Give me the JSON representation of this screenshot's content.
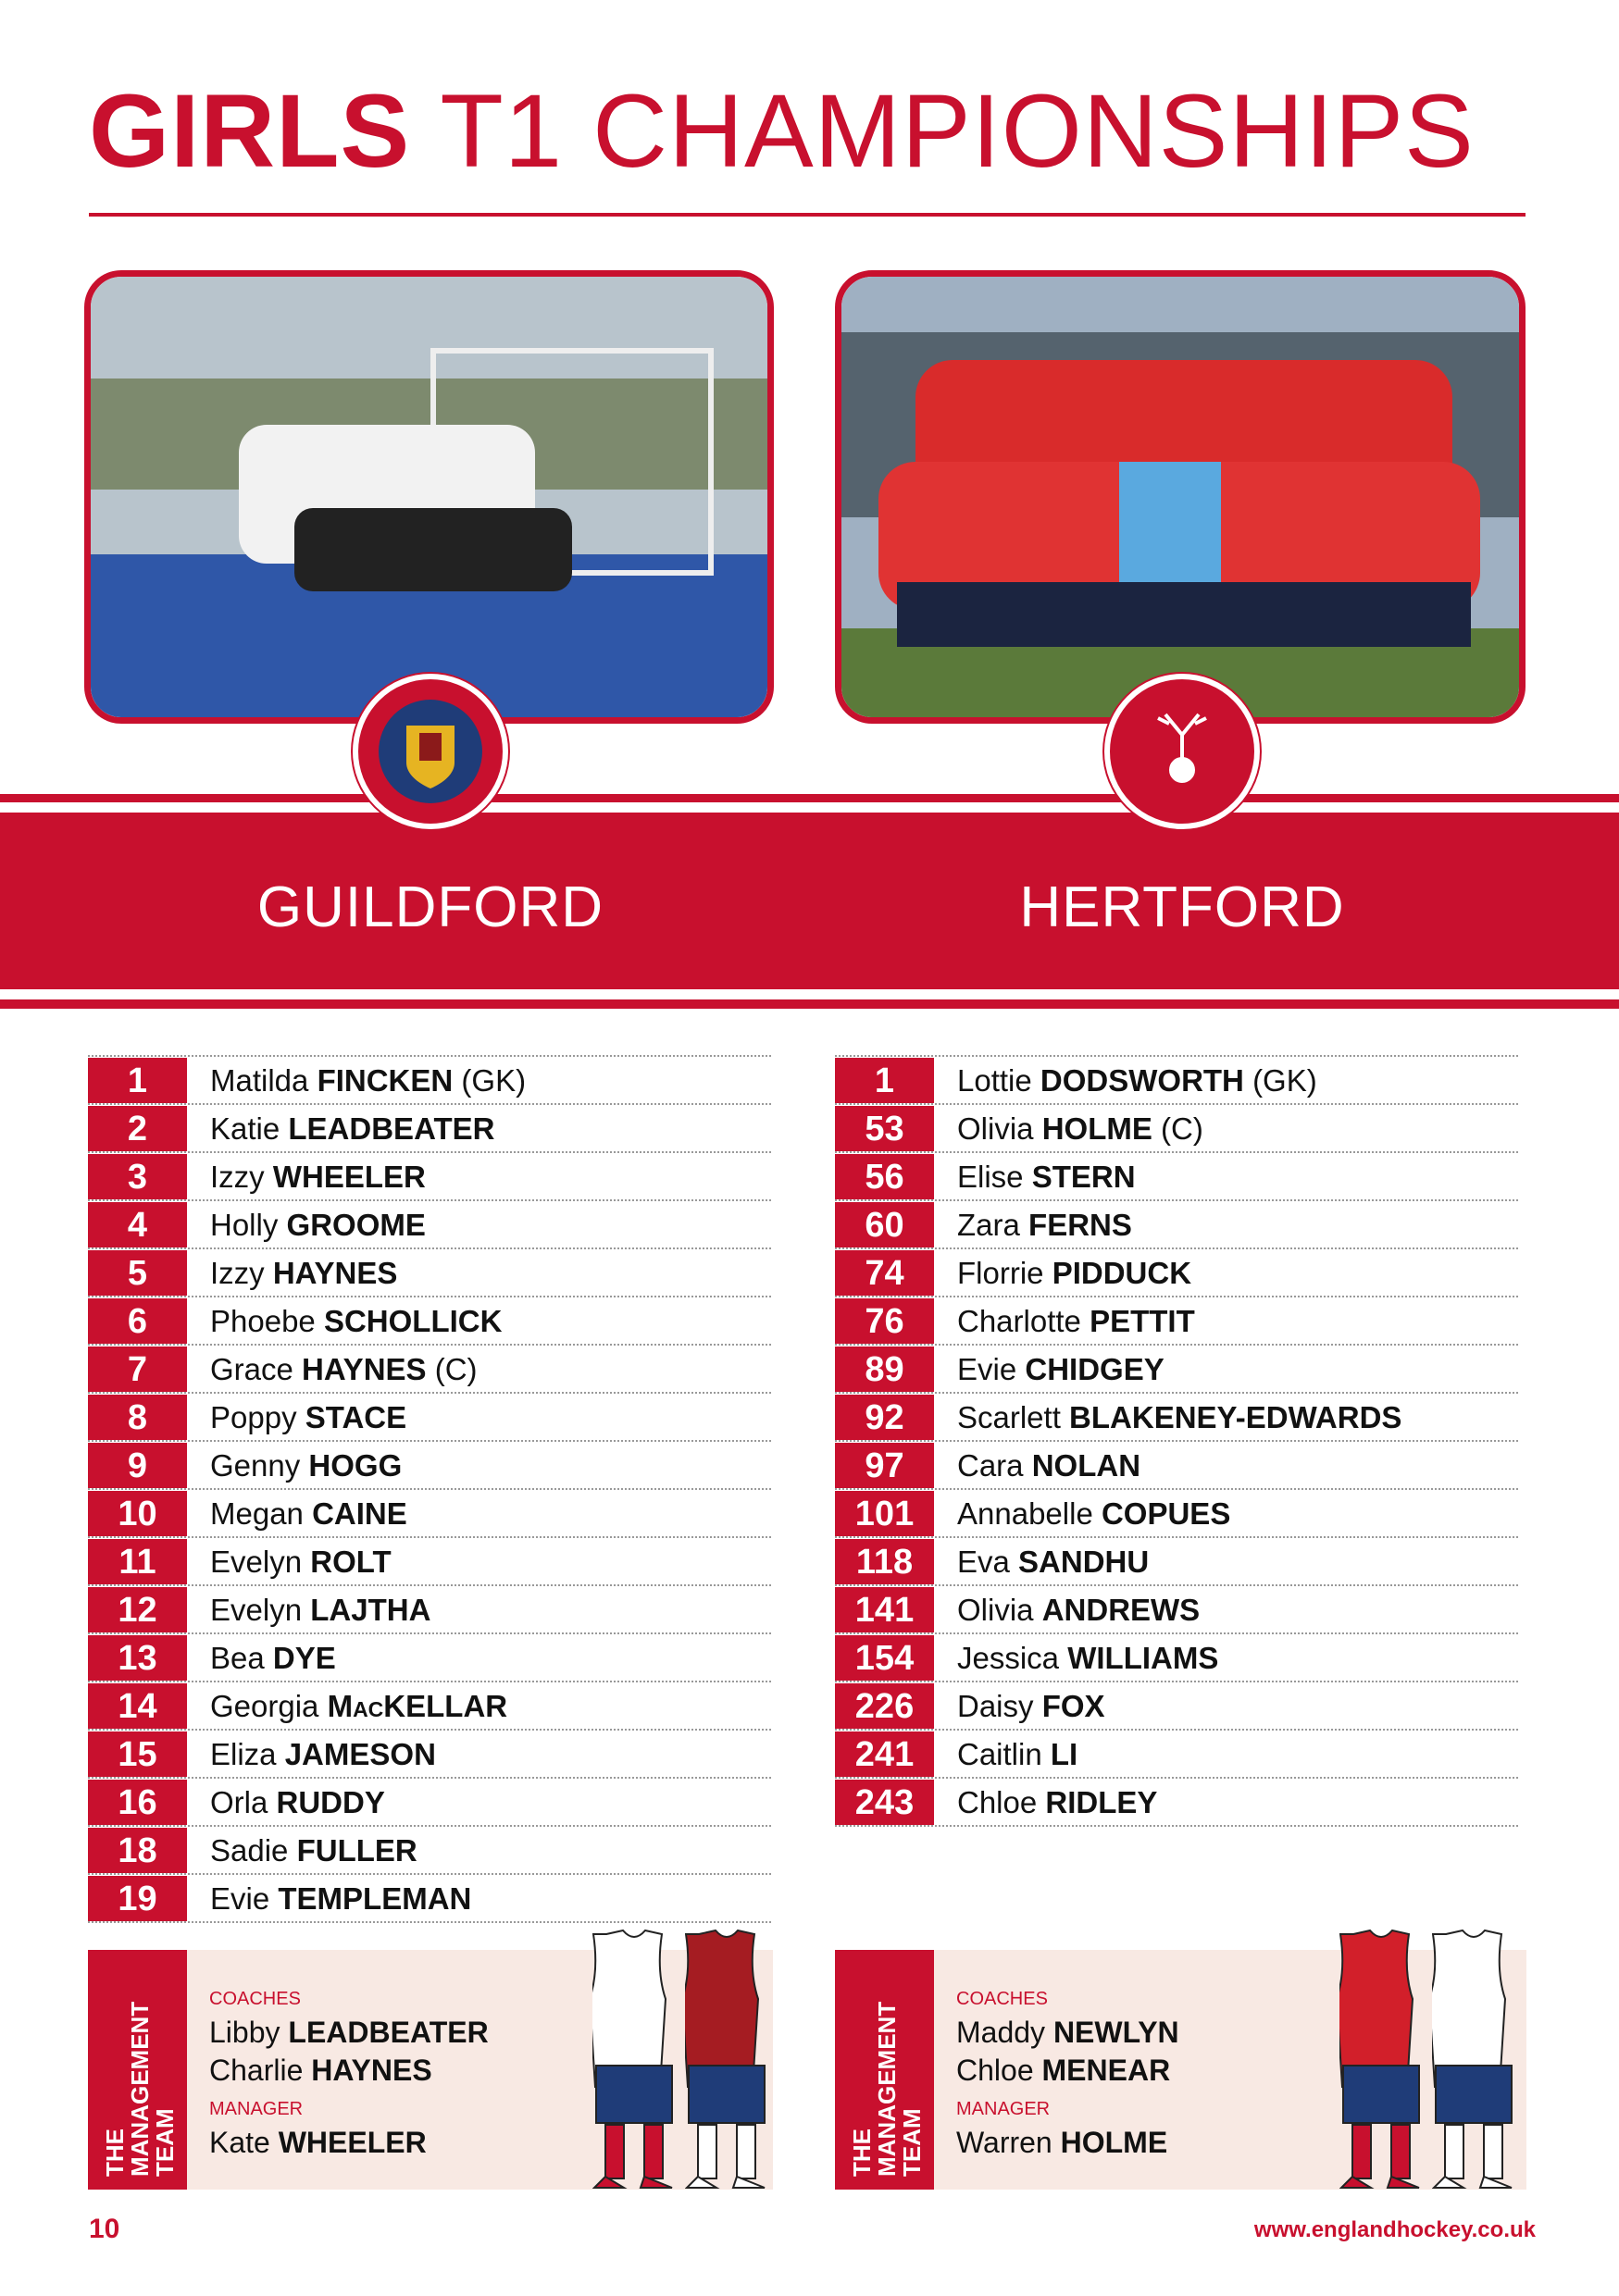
{
  "title": {
    "bold": "GIRLS",
    "light": "T1 CHAMPIONSHIPS"
  },
  "teams": [
    {
      "name": "GUILDFORD",
      "players": [
        {
          "number": 1,
          "first": "Matilda",
          "last": "FINCKEN",
          "note": "(GK)"
        },
        {
          "number": 2,
          "first": "Katie",
          "last": "LEADBEATER"
        },
        {
          "number": 3,
          "first": "Izzy",
          "last": "WHEELER"
        },
        {
          "number": 4,
          "first": "Holly",
          "last": "GROOME"
        },
        {
          "number": 5,
          "first": "Izzy",
          "last": "HAYNES"
        },
        {
          "number": 6,
          "first": "Phoebe",
          "last": "SCHOLLICK"
        },
        {
          "number": 7,
          "first": "Grace",
          "last": "HAYNES",
          "note": "(C)"
        },
        {
          "number": 8,
          "first": "Poppy",
          "last": "STACE"
        },
        {
          "number": 9,
          "first": "Genny",
          "last": "HOGG"
        },
        {
          "number": 10,
          "first": "Megan",
          "last": "CAINE"
        },
        {
          "number": 11,
          "first": "Evelyn",
          "last": "ROLT"
        },
        {
          "number": 12,
          "first": "Evelyn",
          "last": "LAJTHA"
        },
        {
          "number": 13,
          "first": "Bea",
          "last": "DYE"
        },
        {
          "number": 14,
          "first": "Georgia",
          "last": "MacKELLAR"
        },
        {
          "number": 15,
          "first": "Eliza",
          "last": "JAMESON"
        },
        {
          "number": 16,
          "first": "Orla",
          "last": "RUDDY"
        },
        {
          "number": 18,
          "first": "Sadie",
          "last": "FULLER"
        },
        {
          "number": 19,
          "first": "Evie",
          "last": "TEMPLEMAN"
        }
      ],
      "management": {
        "heading": "THE MANAGEMENT TEAM",
        "coaches_label": "COACHES",
        "coaches": [
          {
            "first": "Libby",
            "last": "LEADBEATER"
          },
          {
            "first": "Charlie",
            "last": "HAYNES"
          }
        ],
        "manager_label": "MANAGER",
        "manager": {
          "first": "Kate",
          "last": "WHEELER"
        }
      }
    },
    {
      "name": "HERTFORD",
      "players": [
        {
          "number": 1,
          "first": "Lottie",
          "last": "DODSWORTH",
          "note": "(GK)"
        },
        {
          "number": 53,
          "first": "Olivia",
          "last": "HOLME",
          "note": "(C)"
        },
        {
          "number": 56,
          "first": "Elise",
          "last": "STERN"
        },
        {
          "number": 60,
          "first": "Zara",
          "last": "FERNS"
        },
        {
          "number": 74,
          "first": "Florrie",
          "last": "PIDDUCK"
        },
        {
          "number": 76,
          "first": "Charlotte",
          "last": "PETTIT"
        },
        {
          "number": 89,
          "first": "Evie",
          "last": "CHIDGEY"
        },
        {
          "number": 92,
          "first": "Scarlett",
          "last": "BLAKENEY-EDWARDS"
        },
        {
          "number": 97,
          "first": "Cara",
          "last": "NOLAN"
        },
        {
          "number": 101,
          "first": "Annabelle",
          "last": "COPUES"
        },
        {
          "number": 118,
          "first": "Eva",
          "last": "SANDHU"
        },
        {
          "number": 141,
          "first": "Olivia",
          "last": "ANDREWS"
        },
        {
          "number": 154,
          "first": "Jessica",
          "last": "WILLIAMS"
        },
        {
          "number": 226,
          "first": "Daisy",
          "last": "FOX"
        },
        {
          "number": 241,
          "first": "Caitlin",
          "last": "LI"
        },
        {
          "number": 243,
          "first": "Chloe",
          "last": "RIDLEY"
        }
      ],
      "management": {
        "heading": "THE MANAGEMENT TEAM",
        "coaches_label": "COACHES",
        "coaches": [
          {
            "first": "Maddy",
            "last": "NEWLYN"
          },
          {
            "first": "Chloe",
            "last": "MENEAR"
          }
        ],
        "manager_label": "MANAGER",
        "manager": {
          "first": "Warren",
          "last": "HOLME"
        }
      }
    }
  ],
  "footer": {
    "page": "10",
    "website": "www.englandhockey.co.uk"
  }
}
